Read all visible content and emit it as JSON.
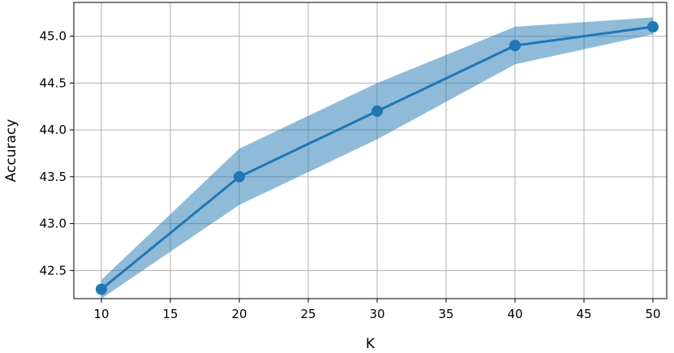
{
  "chart_data": {
    "type": "line",
    "title": "",
    "xlabel": "K",
    "ylabel": "Accuracy",
    "x": [
      10,
      20,
      30,
      40,
      50
    ],
    "series": [
      {
        "values": [
          42.3,
          43.5,
          44.2,
          44.9,
          45.1
        ],
        "lower": [
          42.2,
          43.2,
          43.9,
          44.7,
          45.02
        ],
        "upper": [
          42.4,
          43.8,
          44.5,
          45.1,
          45.2
        ],
        "color": "#1f77b4",
        "band_color": "#1f77b4",
        "band_opacity": 0.5
      }
    ],
    "xlim": [
      8,
      51
    ],
    "ylim": [
      42.2,
      45.36
    ],
    "xticks": [
      10,
      15,
      20,
      25,
      30,
      35,
      40,
      45,
      50
    ],
    "yticks": [
      42.5,
      43.0,
      43.5,
      44.0,
      44.5,
      45.0
    ],
    "xtick_labels": [
      "10",
      "15",
      "20",
      "25",
      "30",
      "35",
      "40",
      "45",
      "50"
    ],
    "ytick_labels": [
      "42.5",
      "43.0",
      "43.5",
      "44.0",
      "44.5",
      "45.0"
    ],
    "grid": true,
    "legend": "none"
  }
}
